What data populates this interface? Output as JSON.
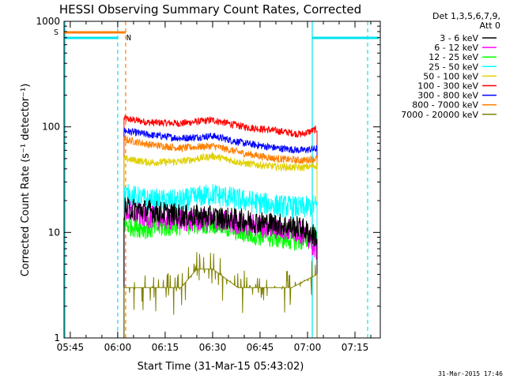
{
  "chart_data": {
    "type": "line",
    "title": "HESSI Observing Summary Count Rates, Corrected",
    "xlabel": "Start Time (31-Mar-15 05:43:02)",
    "ylabel": "Corrected Count Rate (s⁻¹ detector⁻¹)",
    "x_scale": "time",
    "y_scale": "log",
    "xlim": [
      "05:43:02",
      "07:23:00"
    ],
    "ylim": [
      1,
      1000
    ],
    "x_ticks": [
      "05:45",
      "06:00",
      "06:15",
      "06:30",
      "06:45",
      "07:00",
      "07:15"
    ],
    "y_ticks": [
      "1",
      "10",
      "100",
      "1000"
    ],
    "grid": false,
    "legend_header": [
      "Det 1,3,5,6,7,9,",
      "Att 0"
    ],
    "legend_position": "top-right outside",
    "footer_date": "31-Mar-2015 17:46",
    "markers": [
      {
        "label": "S",
        "color": "#ff7f00"
      },
      {
        "label": "N",
        "color": "#00e5ee"
      }
    ],
    "series": [
      {
        "name": "3 - 6 keV",
        "color": "#000000",
        "x": [
          "06:02",
          "06:10",
          "06:20",
          "06:30",
          "06:40",
          "06:50",
          "06:58",
          "07:03"
        ],
        "y": [
          17,
          16,
          14.5,
          14,
          13,
          12,
          11,
          9
        ]
      },
      {
        "name": "6 - 12 keV",
        "color": "#ff00ff",
        "x": [
          "06:02",
          "06:10",
          "06:20",
          "06:30",
          "06:40",
          "06:50",
          "06:58",
          "07:03"
        ],
        "y": [
          16,
          14,
          13,
          13,
          12,
          11,
          10,
          7
        ]
      },
      {
        "name": "12 - 25 keV",
        "color": "#00ff00",
        "x": [
          "06:02",
          "06:10",
          "06:20",
          "06:30",
          "06:40",
          "06:50",
          "06:58",
          "07:03"
        ],
        "y": [
          12,
          11,
          12,
          12.5,
          10,
          9,
          8.5,
          9
        ]
      },
      {
        "name": "25 - 50 keV",
        "color": "#00ffff",
        "x": [
          "06:02",
          "06:10",
          "06:20",
          "06:30",
          "06:40",
          "06:50",
          "06:58",
          "07:03"
        ],
        "y": [
          23,
          20,
          20,
          23,
          20,
          18,
          17,
          18
        ]
      },
      {
        "name": "50 - 100 keV",
        "color": "#e0d000",
        "x": [
          "06:02",
          "06:10",
          "06:20",
          "06:30",
          "06:40",
          "06:50",
          "06:58",
          "07:03"
        ],
        "y": [
          50,
          46,
          47,
          53,
          45,
          42,
          41,
          43
        ]
      },
      {
        "name": "100 - 300 keV",
        "color": "#ff0000",
        "x": [
          "06:02",
          "06:10",
          "06:20",
          "06:30",
          "06:40",
          "06:50",
          "06:58",
          "07:03"
        ],
        "y": [
          120,
          110,
          108,
          116,
          100,
          92,
          85,
          95
        ]
      },
      {
        "name": "300 - 800 keV",
        "color": "#0000ff",
        "x": [
          "06:02",
          "06:10",
          "06:20",
          "06:30",
          "06:40",
          "06:50",
          "06:58",
          "07:03"
        ],
        "y": [
          92,
          84,
          78,
          82,
          70,
          63,
          60,
          62
        ]
      },
      {
        "name": "800 - 7000 keV",
        "color": "#ff7f00",
        "x": [
          "06:02",
          "06:10",
          "06:20",
          "06:30",
          "06:40",
          "06:50",
          "06:58",
          "07:03"
        ],
        "y": [
          76,
          68,
          63,
          66,
          56,
          50,
          48,
          50
        ]
      },
      {
        "name": "7000 - 20000 keV",
        "color": "#808000",
        "x": [
          "06:02",
          "06:10",
          "06:20",
          "06:25",
          "06:30",
          "06:38",
          "06:45",
          "06:55",
          "07:03"
        ],
        "y": [
          3,
          3,
          3,
          4.5,
          4.5,
          3,
          3,
          3,
          4
        ]
      }
    ]
  }
}
